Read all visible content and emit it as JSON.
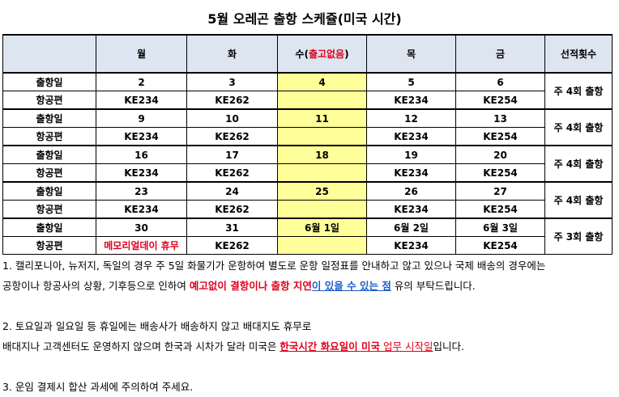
{
  "title": "5월 오레곤 출항 스케쥴(미국 시간)",
  "table": {
    "headers": {
      "blank": "",
      "mon": "월",
      "tue": "화",
      "wed_prefix": "수(",
      "wed_note": "출고없음",
      "wed_suffix": ")",
      "thu": "목",
      "fri": "금",
      "count": "선적횟수"
    },
    "weeks": [
      {
        "departure_label": "출항일",
        "flight_label": "항공편",
        "dates": [
          "2",
          "3",
          "4",
          "5",
          "6"
        ],
        "flights": [
          "KE234",
          "KE262",
          "",
          "KE234",
          "KE254"
        ],
        "weekly": "주 4회 출항"
      },
      {
        "departure_label": "출항일",
        "flight_label": "항공편",
        "dates": [
          "9",
          "10",
          "11",
          "12",
          "13"
        ],
        "flights": [
          "KE234",
          "KE262",
          "",
          "KE234",
          "KE254"
        ],
        "weekly": "주 4회 출항"
      },
      {
        "departure_label": "출항일",
        "flight_label": "항공편",
        "dates": [
          "16",
          "17",
          "18",
          "19",
          "20"
        ],
        "flights": [
          "KE234",
          "KE262",
          "",
          "KE234",
          "KE254"
        ],
        "weekly": "주 4회 출항"
      },
      {
        "departure_label": "출항일",
        "flight_label": "항공편",
        "dates": [
          "23",
          "24",
          "25",
          "26",
          "27"
        ],
        "flights": [
          "KE234",
          "KE262",
          "",
          "KE234",
          "KE254"
        ],
        "weekly": "주 4회 출항"
      },
      {
        "departure_label": "출항일",
        "flight_label": "항공편",
        "dates": [
          "30",
          "31",
          "6월 1일",
          "6월 2일",
          "6월 3일"
        ],
        "flights": [
          "메모리얼데이 휴무",
          "KE262",
          "",
          "KE234",
          "KE254"
        ],
        "weekly": "주 3회 출항"
      }
    ]
  },
  "notes": {
    "n1_a": "1. 캘리포니아, 뉴저지, 독일의 경우 주 5일 화물기가 운항하여 별도로 운항 일정표를 안내하고 않고 있으나 국제 배송의 경우에는",
    "n1_b_pre": "공항이나 항공사의 상황, 기후등으로 인하여 ",
    "n1_b_red": "예고없이 결항이나 출항 지연",
    "n1_b_blue": "이 있을 수 있는 점",
    "n1_b_post": " 유의 부탁드립니다.",
    "n2_a": "2. 토요일과 일요일 등 휴일에는 배송사가 배송하지 않고 배대지도 휴무로",
    "n2_b_pre": "배대지나 고객센터도 운영하지 않으며 한국과 시차가 달라 미국은 ",
    "n2_b_red": "한국시간 화요일이 미국",
    "n2_b_mid": " 업무 ",
    "n2_b_red2": "시작일",
    "n2_b_post": "입니다.",
    "n3": "3. 운임 결제시 합산 과세에 주의하여 주세요."
  },
  "colors": {
    "header_bg": "#dde5f0",
    "wednesday_bg": "#ffff99",
    "red": "#e0001b",
    "blue": "#1f5fc7"
  }
}
